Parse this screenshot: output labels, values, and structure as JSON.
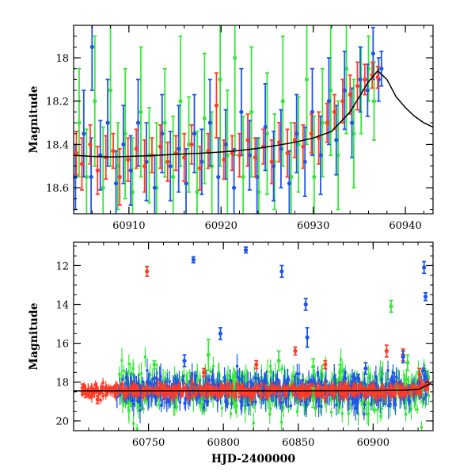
{
  "chart_data": [
    {
      "type": "scatter",
      "panel": "top",
      "xlabel": "",
      "ylabel": "Magnitude",
      "xlim": [
        60904,
        60943
      ],
      "ylim": [
        18.72,
        17.85
      ],
      "y_inverted": true,
      "x_ticks": [
        60910,
        60920,
        60930,
        60940
      ],
      "x_minor_step": 2,
      "y_ticks": [
        18.0,
        18.2,
        18.4,
        18.6
      ],
      "y_ticks_text": [
        "18",
        "18.2",
        "18.4",
        "18.6"
      ],
      "y_minor_step": 0.05,
      "grid": false,
      "legend": "none",
      "colors": {
        "red": "#ff3b26",
        "green": "#37e83a",
        "blue": "#1e55e6",
        "model": "#000000"
      },
      "model_curve": {
        "x": [
          60904,
          60906,
          60908,
          60910,
          60912,
          60914,
          60916,
          60918,
          60920,
          60922,
          60924,
          60926,
          60928,
          60930,
          60932,
          60934,
          60935,
          60936,
          60937,
          60938,
          60939,
          60940,
          60941,
          60942,
          60943
        ],
        "y": [
          18.45,
          18.455,
          18.458,
          18.455,
          18.452,
          18.448,
          18.444,
          18.44,
          18.435,
          18.428,
          18.418,
          18.405,
          18.39,
          18.37,
          18.34,
          18.25,
          18.18,
          18.11,
          18.06,
          18.1,
          18.18,
          18.23,
          18.27,
          18.3,
          18.32
        ]
      },
      "series": [
        {
          "color": "red",
          "points": [
            [
              60904.3,
              18.44,
              0.1
            ],
            [
              60904.9,
              18.49,
              0.12
            ],
            [
              60905.8,
              18.4,
              0.09
            ],
            [
              60906.6,
              18.52,
              0.11
            ],
            [
              60907.5,
              18.46,
              0.1
            ],
            [
              60908.3,
              18.43,
              0.08
            ],
            [
              60909.0,
              18.55,
              0.13
            ],
            [
              60909.9,
              18.47,
              0.1
            ],
            [
              60910.8,
              18.42,
              0.09
            ],
            [
              60911.7,
              18.5,
              0.12
            ],
            [
              60912.5,
              18.45,
              0.08
            ],
            [
              60913.4,
              18.41,
              0.1
            ],
            [
              60914.2,
              18.48,
              0.09
            ],
            [
              60915.1,
              18.44,
              0.08
            ],
            [
              60916.0,
              18.46,
              0.11
            ],
            [
              60916.8,
              18.4,
              0.09
            ],
            [
              60917.7,
              18.51,
              0.1
            ],
            [
              60918.6,
              18.43,
              0.08
            ],
            [
              60919.5,
              18.22,
              0.15
            ],
            [
              60920.3,
              18.47,
              0.09
            ],
            [
              60921.2,
              18.44,
              0.08
            ],
            [
              60922.0,
              18.45,
              0.1
            ],
            [
              60922.9,
              18.38,
              0.12
            ],
            [
              60923.7,
              18.46,
              0.09
            ],
            [
              60924.6,
              18.41,
              0.08
            ],
            [
              60925.5,
              18.48,
              0.1
            ],
            [
              60926.3,
              18.39,
              0.09
            ],
            [
              60927.2,
              18.44,
              0.11
            ],
            [
              60928.0,
              18.38,
              0.08
            ],
            [
              60928.9,
              18.41,
              0.1
            ],
            [
              60929.8,
              18.35,
              0.09
            ],
            [
              60930.6,
              18.37,
              0.12
            ],
            [
              60931.5,
              18.3,
              0.09
            ],
            [
              60932.3,
              18.25,
              0.08
            ],
            [
              60933.2,
              18.2,
              0.1
            ],
            [
              60934.0,
              18.17,
              0.09
            ],
            [
              60934.8,
              18.13,
              0.11
            ],
            [
              60935.6,
              18.1,
              0.07
            ],
            [
              60936.4,
              18.08,
              0.06
            ],
            [
              60937.0,
              18.09,
              0.05
            ]
          ]
        },
        {
          "color": "green",
          "points": [
            [
              60904.6,
              18.3,
              0.25
            ],
            [
              60905.4,
              18.55,
              0.22
            ],
            [
              60906.3,
              18.2,
              0.3
            ],
            [
              60907.2,
              18.6,
              0.28
            ],
            [
              60908.0,
              18.15,
              0.35
            ],
            [
              60908.8,
              18.5,
              0.2
            ],
            [
              60909.6,
              18.35,
              0.3
            ],
            [
              60910.4,
              18.62,
              0.25
            ],
            [
              60911.3,
              18.25,
              0.3
            ],
            [
              60912.2,
              18.45,
              0.22
            ],
            [
              60913.0,
              18.6,
              0.3
            ],
            [
              60913.9,
              18.3,
              0.25
            ],
            [
              60914.8,
              18.55,
              0.28
            ],
            [
              60915.6,
              18.2,
              0.3
            ],
            [
              60916.5,
              18.4,
              0.22
            ],
            [
              60917.4,
              18.62,
              0.28
            ],
            [
              60918.2,
              18.28,
              0.3
            ],
            [
              60919.0,
              18.5,
              0.25
            ],
            [
              60919.9,
              18.1,
              0.4
            ],
            [
              60920.7,
              18.45,
              0.3
            ],
            [
              60921.5,
              18.0,
              0.45
            ],
            [
              60922.4,
              18.55,
              0.28
            ],
            [
              60923.3,
              18.25,
              0.3
            ],
            [
              60924.1,
              18.62,
              0.25
            ],
            [
              60925.0,
              18.35,
              0.28
            ],
            [
              60925.8,
              18.48,
              0.22
            ],
            [
              60926.7,
              18.2,
              0.3
            ],
            [
              60927.6,
              18.55,
              0.25
            ],
            [
              60928.4,
              18.4,
              0.22
            ],
            [
              60929.3,
              18.1,
              0.3
            ],
            [
              60930.1,
              18.55,
              0.28
            ],
            [
              60931.0,
              18.3,
              0.25
            ],
            [
              60931.9,
              18.15,
              0.3
            ],
            [
              60932.7,
              18.45,
              0.25
            ],
            [
              60933.6,
              18.05,
              0.3
            ],
            [
              60934.4,
              18.35,
              0.25
            ],
            [
              60935.2,
              18.15,
              0.2
            ],
            [
              60936.0,
              18.05,
              0.15
            ],
            [
              60936.6,
              18.2,
              0.18
            ]
          ]
        },
        {
          "color": "blue",
          "points": [
            [
              60904.2,
              18.55,
              0.15
            ],
            [
              60905.1,
              18.35,
              0.2
            ],
            [
              60905.9,
              18.55,
              0.18
            ],
            [
              60906.0,
              17.95,
              0.2
            ],
            [
              60906.9,
              18.45,
              0.16
            ],
            [
              60907.7,
              18.3,
              0.2
            ],
            [
              60908.6,
              18.58,
              0.15
            ],
            [
              60909.4,
              18.4,
              0.18
            ],
            [
              60910.2,
              18.52,
              0.16
            ],
            [
              60911.0,
              18.3,
              0.2
            ],
            [
              60911.9,
              18.48,
              0.18
            ],
            [
              60912.8,
              18.6,
              0.15
            ],
            [
              60913.6,
              18.35,
              0.18
            ],
            [
              60914.5,
              18.5,
              0.16
            ],
            [
              60915.4,
              18.42,
              0.2
            ],
            [
              60916.2,
              18.58,
              0.16
            ],
            [
              60917.1,
              18.35,
              0.18
            ],
            [
              60917.9,
              18.48,
              0.15
            ],
            [
              60918.8,
              18.3,
              0.2
            ],
            [
              60919.7,
              18.55,
              0.18
            ],
            [
              60920.5,
              18.4,
              0.16
            ],
            [
              60921.4,
              18.6,
              0.18
            ],
            [
              60922.2,
              18.25,
              0.2
            ],
            [
              60923.1,
              18.45,
              0.16
            ],
            [
              60923.9,
              18.55,
              0.18
            ],
            [
              60924.8,
              18.32,
              0.2
            ],
            [
              60925.7,
              18.5,
              0.16
            ],
            [
              60926.5,
              18.42,
              0.18
            ],
            [
              60927.4,
              18.58,
              0.15
            ],
            [
              60928.2,
              18.35,
              0.18
            ],
            [
              60929.1,
              18.48,
              0.16
            ],
            [
              60929.9,
              18.25,
              0.2
            ],
            [
              60930.8,
              18.45,
              0.18
            ],
            [
              60931.7,
              18.2,
              0.2
            ],
            [
              60932.5,
              18.38,
              0.16
            ],
            [
              60933.4,
              18.15,
              0.18
            ],
            [
              60934.2,
              18.3,
              0.16
            ],
            [
              60935.1,
              18.1,
              0.15
            ],
            [
              60935.9,
              18.15,
              0.12
            ],
            [
              60936.5,
              17.98,
              0.12
            ],
            [
              60937.1,
              18.1,
              0.1
            ],
            [
              60937.4,
              18.05,
              0.08
            ]
          ]
        }
      ]
    },
    {
      "type": "scatter",
      "panel": "bottom",
      "xlabel": "HJD-2400000",
      "ylabel": "Magnitude",
      "xlim": [
        60700,
        60940
      ],
      "ylim": [
        20.5,
        10.8
      ],
      "y_inverted": true,
      "x_ticks": [
        60750,
        60800,
        60850,
        60900
      ],
      "x_minor_step": 10,
      "y_ticks": [
        12,
        14,
        16,
        18,
        20
      ],
      "y_minor_step": 0.5,
      "grid": false,
      "legend": "none",
      "colors": {
        "red": "#ff3b26",
        "green": "#37e83a",
        "blue": "#1e55e6",
        "model": "#000000"
      },
      "baseline_magnitude": 18.45,
      "model_curve": {
        "x": [
          60700,
          60750,
          60800,
          60850,
          60900,
          60920,
          60930,
          60935,
          60938,
          60940
        ],
        "y": [
          18.45,
          18.45,
          18.45,
          18.45,
          18.44,
          18.42,
          18.38,
          18.2,
          18.08,
          18.15
        ]
      },
      "outliers": [
        {
          "color": "red",
          "points": [
            [
              60749,
              12.3,
              0.25
            ],
            [
              60787,
              17.5,
              0.2
            ],
            [
              60822,
              17.1,
              0.2
            ],
            [
              60848,
              16.4,
              0.2
            ],
            [
              60868,
              17.1,
              0.2
            ],
            [
              60909,
              16.4,
              0.3
            ],
            [
              60920,
              16.6,
              0.3
            ],
            [
              60931,
              17.6,
              0.3
            ]
          ]
        },
        {
          "color": "blue",
          "points": [
            [
              60780,
              11.7,
              0.15
            ],
            [
              60815,
              11.2,
              0.15
            ],
            [
              60839,
              12.3,
              0.3
            ],
            [
              60855,
              14.0,
              0.3
            ],
            [
              60798,
              15.5,
              0.3
            ],
            [
              60774,
              16.9,
              0.3
            ],
            [
              60856,
              15.7,
              0.5
            ],
            [
              60890,
              17.8,
              0.2
            ],
            [
              60920,
              16.7,
              0.3
            ],
            [
              60934,
              12.1,
              0.3
            ],
            [
              60935,
              13.6,
              0.2
            ],
            [
              60895,
              17.3,
              0.3
            ]
          ]
        },
        {
          "color": "green",
          "points": [
            [
              60754,
              17.1,
              0.2
            ],
            [
              60837,
              16.9,
              0.5
            ],
            [
              60860,
              17.2,
              0.4
            ],
            [
              60878,
              17.5,
              0.4
            ],
            [
              60912,
              14.1,
              0.3
            ],
            [
              60923,
              17.0,
              0.4
            ],
            [
              60860,
              18.8,
              0.5
            ],
            [
              60790,
              16.6,
              0.8
            ]
          ]
        }
      ]
    }
  ]
}
